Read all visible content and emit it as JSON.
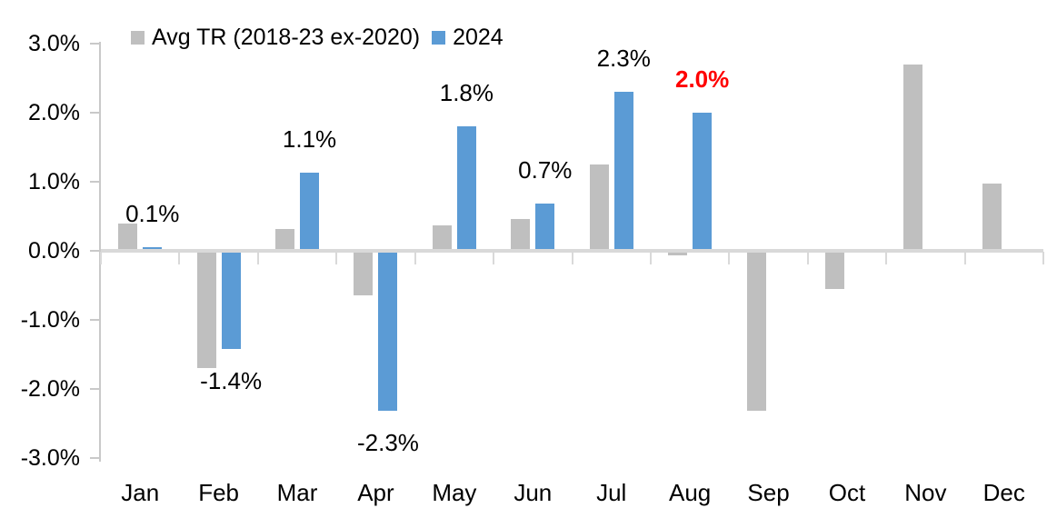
{
  "chart_data": {
    "type": "bar",
    "title": "",
    "xlabel": "",
    "ylabel": "",
    "categories": [
      "Jan",
      "Feb",
      "Mar",
      "Apr",
      "May",
      "Jun",
      "Jul",
      "Aug",
      "Sep",
      "Oct",
      "Nov",
      "Dec"
    ],
    "series": [
      {
        "name": "Avg TR (2018-23 ex-2020)",
        "color": "#BFBFBF",
        "values": [
          0.4,
          -1.7,
          0.32,
          -0.65,
          0.37,
          0.46,
          1.25,
          -0.06,
          -2.32,
          -0.55,
          2.7,
          0.97
        ]
      },
      {
        "name": "2024",
        "color": "#5B9BD5",
        "values": [
          0.05,
          -1.42,
          1.13,
          -2.32,
          1.8,
          0.68,
          2.3,
          2.0,
          null,
          null,
          null,
          null
        ],
        "data_labels": [
          {
            "text": "0.1%",
            "color": "#000000",
            "bold": false
          },
          {
            "text": "-1.4%",
            "color": "#000000",
            "bold": false
          },
          {
            "text": "1.1%",
            "color": "#000000",
            "bold": false
          },
          {
            "text": "-2.3%",
            "color": "#000000",
            "bold": false
          },
          {
            "text": "1.8%",
            "color": "#000000",
            "bold": false
          },
          {
            "text": "0.7%",
            "color": "#000000",
            "bold": false
          },
          {
            "text": "2.3%",
            "color": "#000000",
            "bold": false
          },
          {
            "text": "2.0%",
            "color": "#FF0000",
            "bold": true
          },
          null,
          null,
          null,
          null
        ]
      }
    ],
    "ylim": [
      -3.0,
      3.0
    ],
    "yticks": [
      {
        "value": 3,
        "label": "3.0%"
      },
      {
        "value": 2,
        "label": "2.0%"
      },
      {
        "value": 1,
        "label": "1.0%"
      },
      {
        "value": 0,
        "label": "0.0%"
      },
      {
        "value": -1,
        "label": "-1.0%"
      },
      {
        "value": -2,
        "label": "-2.0%"
      },
      {
        "value": -3,
        "label": "-3.0%"
      }
    ],
    "grid": false,
    "legend_position": "top-left-inside",
    "axis_color": "#D9D9D9",
    "tick_color": "#C9C9C9",
    "text_color": "#000000",
    "background": "#FFFFFF"
  }
}
